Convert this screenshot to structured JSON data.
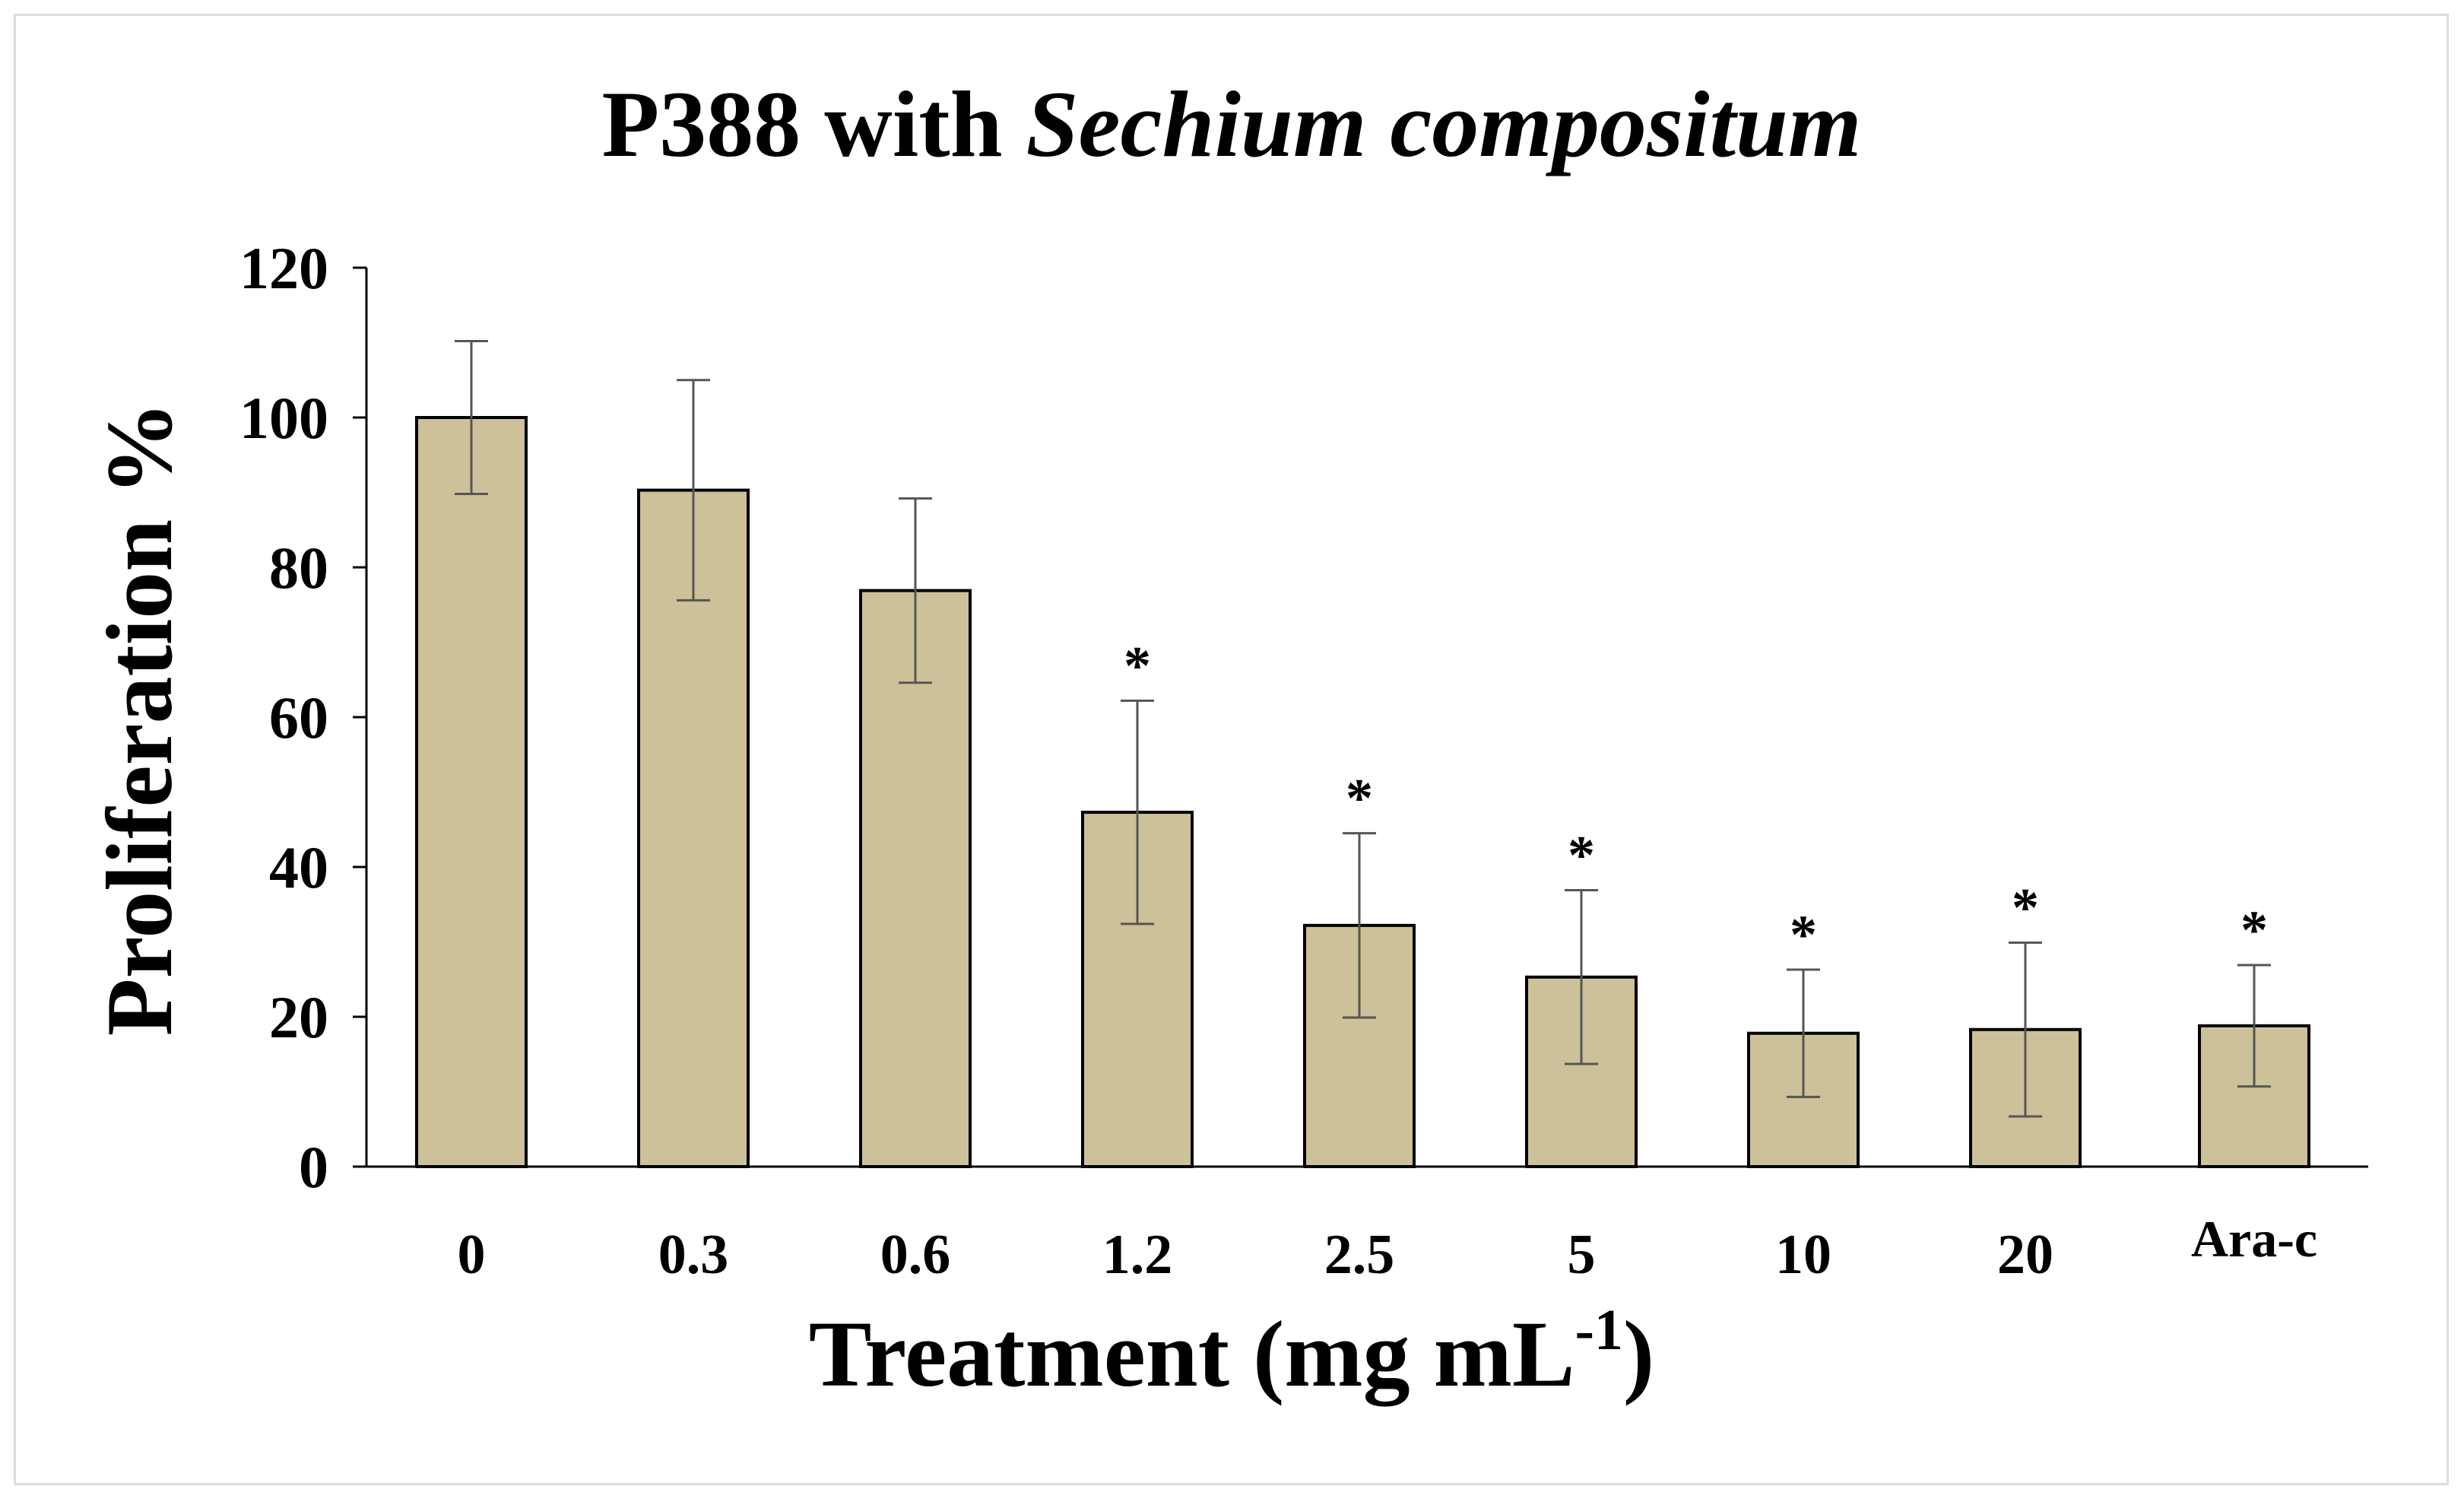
{
  "chart_data": {
    "type": "bar",
    "title_prefix": "P388 with ",
    "title_italic": "Sechium compositum",
    "xlabel_main": "Treatment (mg mL",
    "xlabel_sup": "-1",
    "xlabel_close": ")",
    "ylabel": "Proliferation %",
    "ylim": [
      0,
      120
    ],
    "yticks": [
      0,
      20,
      40,
      60,
      80,
      100,
      120
    ],
    "categories": [
      "0",
      "0.3",
      "0.6",
      "1.2",
      "2.5",
      "5",
      "10",
      "20",
      "Ara-c"
    ],
    "values": [
      100,
      90.3,
      76.9,
      47.3,
      32.2,
      25.3,
      17.8,
      18.3,
      18.8
    ],
    "errors": [
      10.2,
      14.7,
      12.3,
      14.9,
      12.3,
      11.6,
      8.5,
      11.6,
      8.1
    ],
    "significant": [
      false,
      false,
      false,
      true,
      true,
      true,
      true,
      true,
      true
    ],
    "significance_marker": "*",
    "bar_color": "#cdc199",
    "bar_edge_color": "#000000",
    "error_color": "#555555"
  }
}
